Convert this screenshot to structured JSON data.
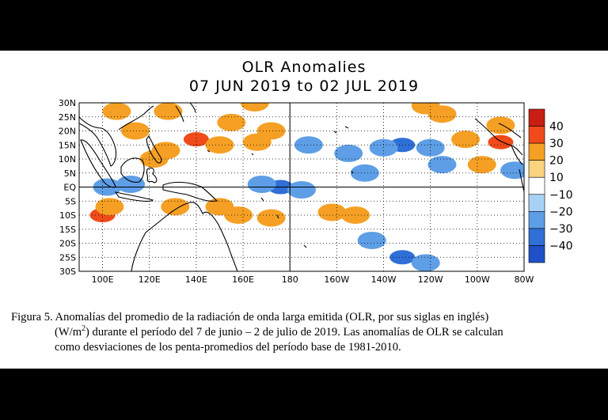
{
  "chart_data": {
    "type": "heatmap",
    "title": "OLR Anomalies",
    "subtitle": "07 JUN 2019 to 02 JUL 2019",
    "lat_ticks": [
      "30N",
      "25N",
      "20N",
      "15N",
      "10N",
      "5N",
      "EQ",
      "5S",
      "10S",
      "15S",
      "20S",
      "25S",
      "30S"
    ],
    "lon_ticks": [
      "100E",
      "120E",
      "140E",
      "160E",
      "180",
      "160W",
      "140W",
      "120W",
      "100W",
      "80W"
    ],
    "xlim": [
      90,
      280
    ],
    "ylim": [
      -30,
      30
    ],
    "colorbar": {
      "labels": [
        "40",
        "30",
        "20",
        "10",
        "−10",
        "−20",
        "−30",
        "−40"
      ],
      "colors": [
        "#c81e14",
        "#f04a1a",
        "#f5a024",
        "#fbd27e",
        "#ffffff",
        "#a8d2f5",
        "#5e9ee6",
        "#2f6fd6",
        "#1f50c8"
      ]
    },
    "anomaly_regions": [
      {
        "lon": 100,
        "lat": -10,
        "value": 30
      },
      {
        "lon": 103,
        "lat": -7,
        "value": 20
      },
      {
        "lon": 106,
        "lat": 27,
        "value": 20
      },
      {
        "lon": 114,
        "lat": 20,
        "value": 20
      },
      {
        "lon": 128,
        "lat": 27,
        "value": 20
      },
      {
        "lon": 122,
        "lat": 10,
        "value": 20
      },
      {
        "lon": 127,
        "lat": 13,
        "value": 20
      },
      {
        "lon": 131,
        "lat": -7,
        "value": 20
      },
      {
        "lon": 150,
        "lat": -7,
        "value": 20
      },
      {
        "lon": 140,
        "lat": 17,
        "value": 30
      },
      {
        "lon": 150,
        "lat": 15,
        "value": 20
      },
      {
        "lon": 166,
        "lat": 16,
        "value": 20
      },
      {
        "lon": 172,
        "lat": 20,
        "value": 20
      },
      {
        "lon": 155,
        "lat": 23,
        "value": 20
      },
      {
        "lon": 165,
        "lat": 30,
        "value": 20
      },
      {
        "lon": 158,
        "lat": -10,
        "value": 20
      },
      {
        "lon": 172,
        "lat": -11,
        "value": 20
      },
      {
        "lon": 198,
        "lat": -9,
        "value": 20
      },
      {
        "lon": 208,
        "lat": -10,
        "value": 20
      },
      {
        "lon": 270,
        "lat": 16,
        "value": 30
      },
      {
        "lon": 255,
        "lat": 17,
        "value": 20
      },
      {
        "lon": 262,
        "lat": 8,
        "value": 20
      },
      {
        "lon": 245,
        "lat": 26,
        "value": 20
      },
      {
        "lon": 238,
        "lat": 29,
        "value": 20
      },
      {
        "lon": 270,
        "lat": 22,
        "value": 20
      },
      {
        "lon": 176,
        "lat": 0,
        "value": -30
      },
      {
        "lon": 168,
        "lat": 1,
        "value": -20
      },
      {
        "lon": 185,
        "lat": -1,
        "value": -20
      },
      {
        "lon": 228,
        "lat": -25,
        "value": -30
      },
      {
        "lon": 215,
        "lat": -19,
        "value": -20
      },
      {
        "lon": 238,
        "lat": -27,
        "value": -20
      },
      {
        "lon": 228,
        "lat": 15,
        "value": -30
      },
      {
        "lon": 220,
        "lat": 14,
        "value": -20
      },
      {
        "lon": 240,
        "lat": 14,
        "value": -20
      },
      {
        "lon": 205,
        "lat": 12,
        "value": -20
      },
      {
        "lon": 212,
        "lat": 5,
        "value": -20
      },
      {
        "lon": 245,
        "lat": 8,
        "value": -20
      },
      {
        "lon": 276,
        "lat": 6,
        "value": -20
      },
      {
        "lon": 112,
        "lat": 1,
        "value": -20
      },
      {
        "lon": 102,
        "lat": 0,
        "value": -20
      },
      {
        "lon": 188,
        "lat": 15,
        "value": -20
      }
    ]
  },
  "caption": {
    "prefix": "Figura 5. Anomalías del promedio de la radiación de onda larga emitida (OLR, por sus siglas en inglés)",
    "line2_a": "(W/m",
    "line2_sup": "2",
    "line2_b": ") durante el período del 7 de junio – 2 de julio de 2019.  Las anomalías de OLR se calculan",
    "line3": "como desviaciones de los penta-promedios del período base de 1981-2010."
  }
}
